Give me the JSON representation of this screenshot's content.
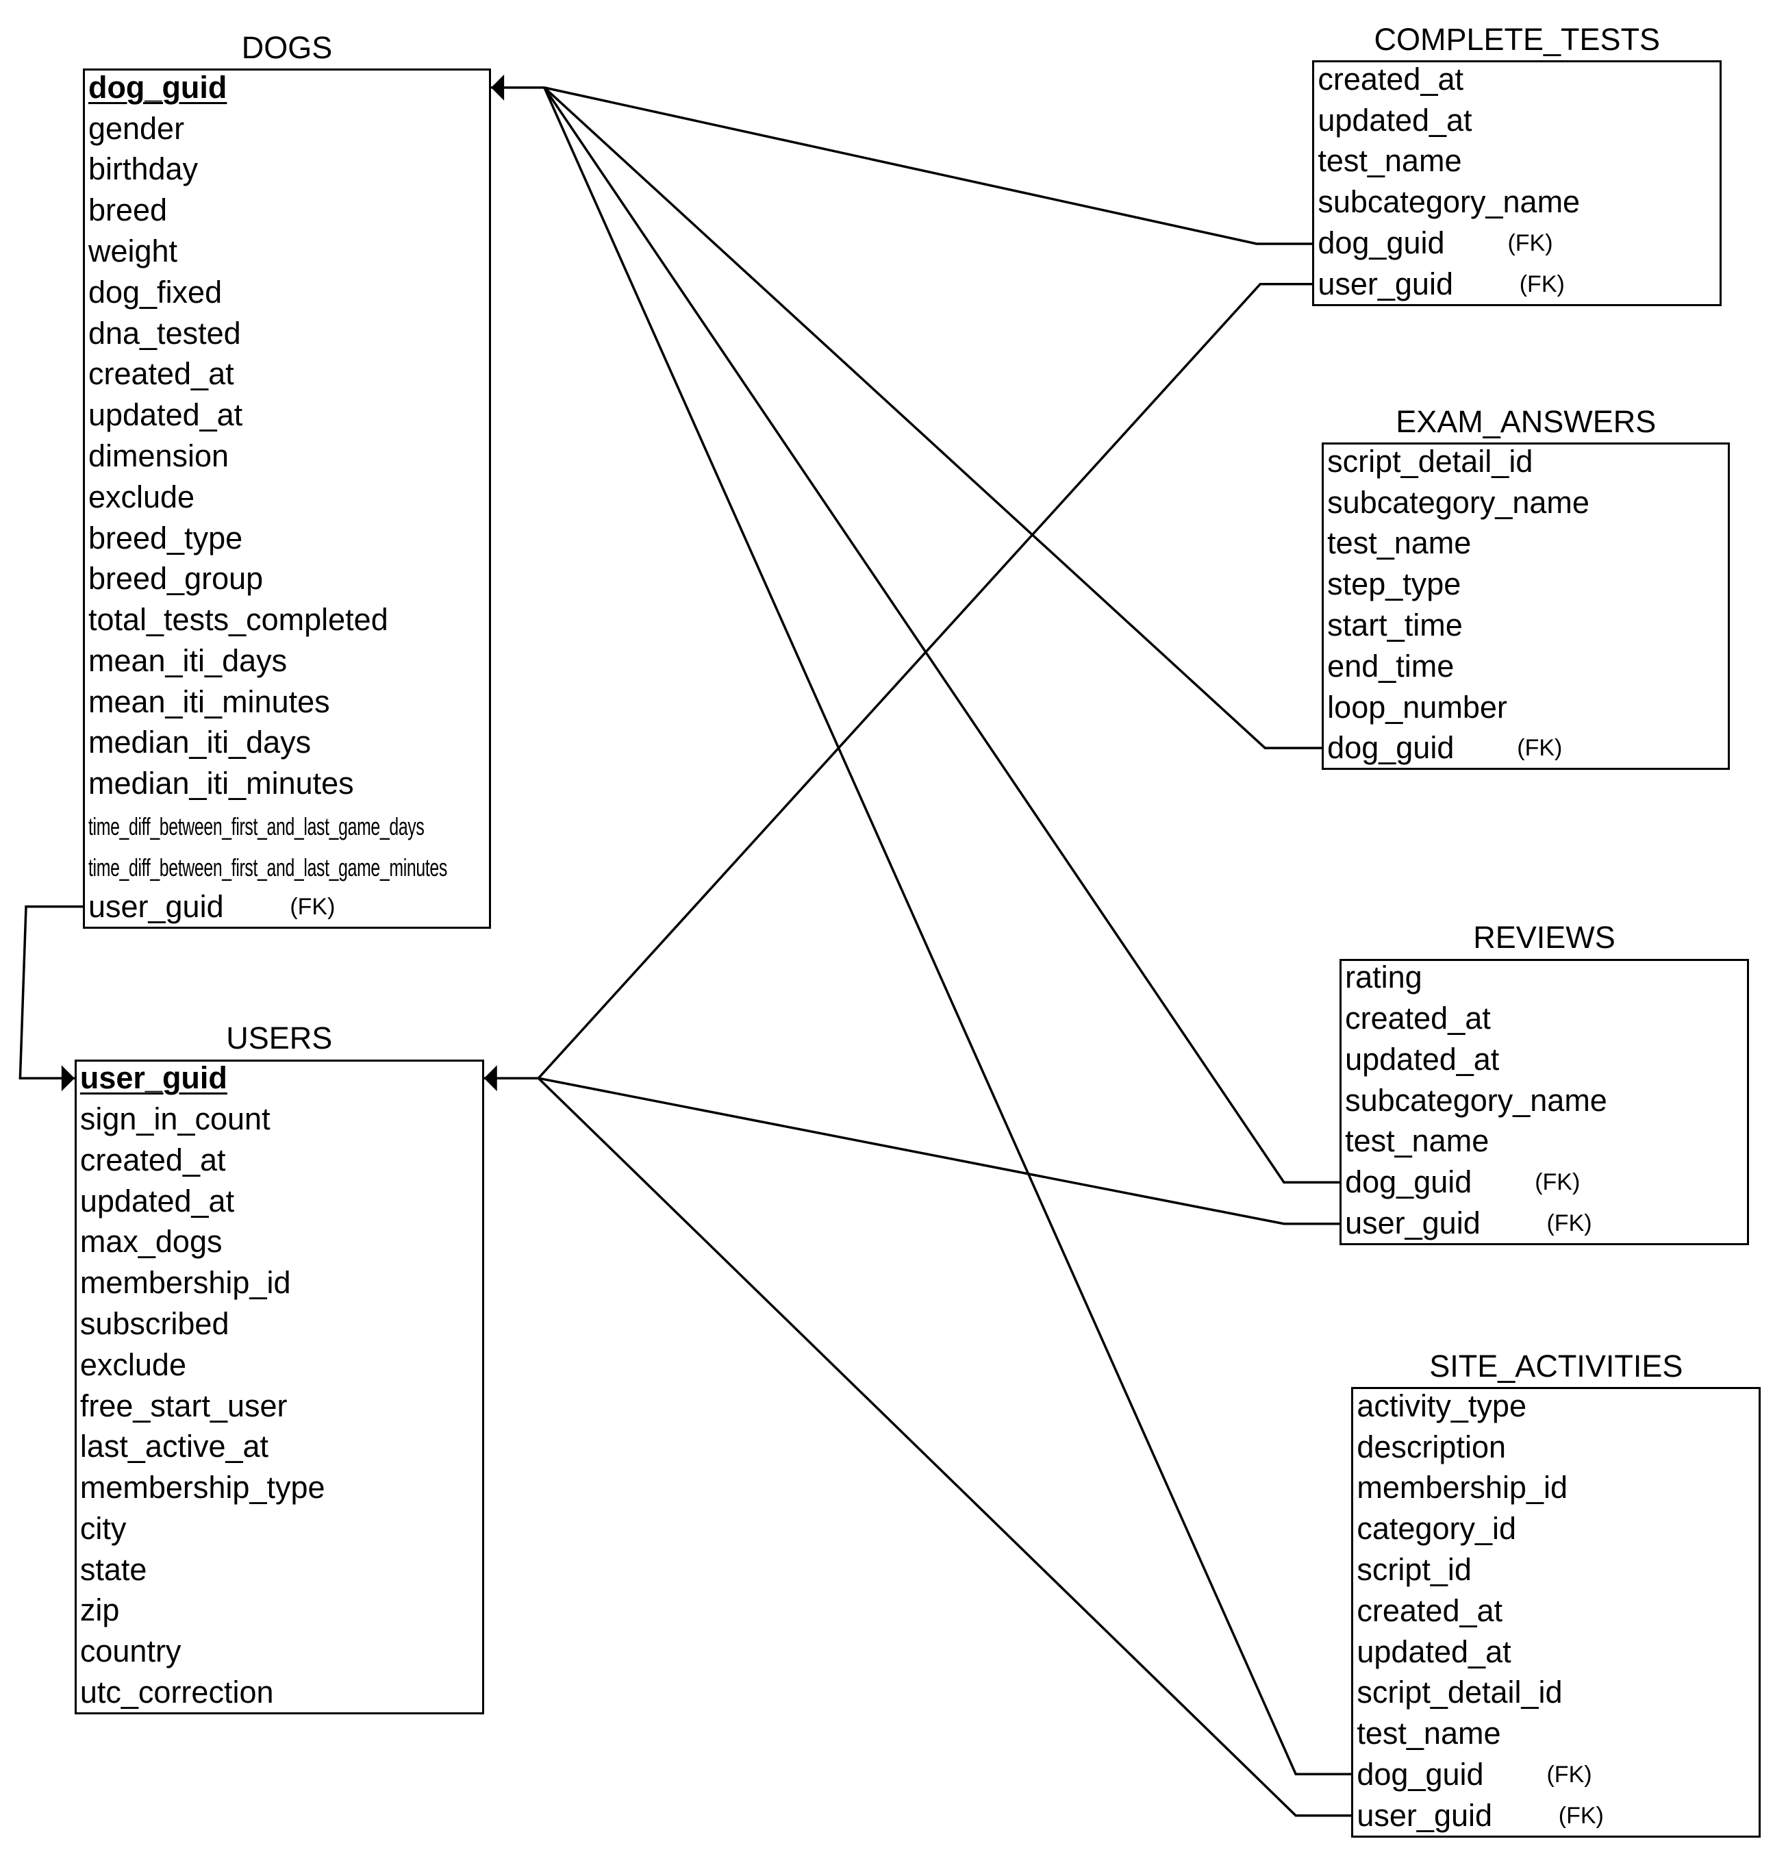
{
  "entities": [
    {
      "id": "dogs",
      "name": "DOGS",
      "fields": [
        {
          "name": "dog_guid",
          "primary_key": true
        },
        {
          "name": "gender"
        },
        {
          "name": "birthday"
        },
        {
          "name": "breed"
        },
        {
          "name": "weight"
        },
        {
          "name": "dog_fixed"
        },
        {
          "name": "dna_tested"
        },
        {
          "name": "created_at"
        },
        {
          "name": "updated_at"
        },
        {
          "name": "dimension"
        },
        {
          "name": "exclude"
        },
        {
          "name": "breed_type"
        },
        {
          "name": "breed_group"
        },
        {
          "name": "total_tests_completed"
        },
        {
          "name": "mean_iti_days"
        },
        {
          "name": "mean_iti_minutes"
        },
        {
          "name": "median_iti_days"
        },
        {
          "name": "median_iti_minutes"
        },
        {
          "name": "time_diff_between_first_and_last_game_days"
        },
        {
          "name": "time_diff_between_first_and_last_game_minutes"
        },
        {
          "name": "user_guid",
          "fk_label": "(FK)"
        }
      ]
    },
    {
      "id": "users",
      "name": "USERS",
      "fields": [
        {
          "name": "user_guid",
          "primary_key": true
        },
        {
          "name": "sign_in_count"
        },
        {
          "name": "created_at"
        },
        {
          "name": "updated_at"
        },
        {
          "name": "max_dogs"
        },
        {
          "name": "membership_id"
        },
        {
          "name": "subscribed"
        },
        {
          "name": "exclude"
        },
        {
          "name": "free_start_user"
        },
        {
          "name": "last_active_at"
        },
        {
          "name": "membership_type"
        },
        {
          "name": "city"
        },
        {
          "name": "state"
        },
        {
          "name": "zip"
        },
        {
          "name": "country"
        },
        {
          "name": "utc_correction"
        }
      ]
    },
    {
      "id": "complete_tests",
      "name": "COMPLETE_TESTS",
      "fields": [
        {
          "name": "created_at"
        },
        {
          "name": "updated_at"
        },
        {
          "name": "test_name"
        },
        {
          "name": "subcategory_name"
        },
        {
          "name": "dog_guid",
          "fk_label": "(FK)"
        },
        {
          "name": "user_guid",
          "fk_label": "(FK)"
        }
      ]
    },
    {
      "id": "exam_answers",
      "name": "EXAM_ANSWERS",
      "fields": [
        {
          "name": "script_detail_id"
        },
        {
          "name": "subcategory_name"
        },
        {
          "name": "test_name"
        },
        {
          "name": "step_type"
        },
        {
          "name": "start_time"
        },
        {
          "name": "end_time"
        },
        {
          "name": "loop_number"
        },
        {
          "name": "dog_guid",
          "fk_label": "(FK)"
        }
      ]
    },
    {
      "id": "reviews",
      "name": "REVIEWS",
      "fields": [
        {
          "name": "rating"
        },
        {
          "name": "created_at"
        },
        {
          "name": "updated_at"
        },
        {
          "name": "subcategory_name"
        },
        {
          "name": "test_name"
        },
        {
          "name": "dog_guid",
          "fk_label": "(FK)"
        },
        {
          "name": "user_guid",
          "fk_label": "(FK)"
        }
      ]
    },
    {
      "id": "site_activities",
      "name": "SITE_ACTIVITIES",
      "fields": [
        {
          "name": "activity_type"
        },
        {
          "name": "description"
        },
        {
          "name": "membership_id"
        },
        {
          "name": "category_id"
        },
        {
          "name": "script_id"
        },
        {
          "name": "created_at"
        },
        {
          "name": "updated_at"
        },
        {
          "name": "script_detail_id"
        },
        {
          "name": "test_name"
        },
        {
          "name": "dog_guid",
          "fk_label": "(FK)"
        },
        {
          "name": "user_guid",
          "fk_label": "(FK)"
        }
      ]
    }
  ],
  "relationships": [
    {
      "from": "dogs.user_guid",
      "to": "users.user_guid"
    },
    {
      "from": "complete_tests.dog_guid",
      "to": "dogs.dog_guid"
    },
    {
      "from": "exam_answers.dog_guid",
      "to": "dogs.dog_guid"
    },
    {
      "from": "reviews.dog_guid",
      "to": "dogs.dog_guid"
    },
    {
      "from": "site_activities.dog_guid",
      "to": "dogs.dog_guid"
    },
    {
      "from": "complete_tests.user_guid",
      "to": "users.user_guid"
    },
    {
      "from": "reviews.user_guid",
      "to": "users.user_guid"
    },
    {
      "from": "site_activities.user_guid",
      "to": "users.user_guid"
    }
  ]
}
